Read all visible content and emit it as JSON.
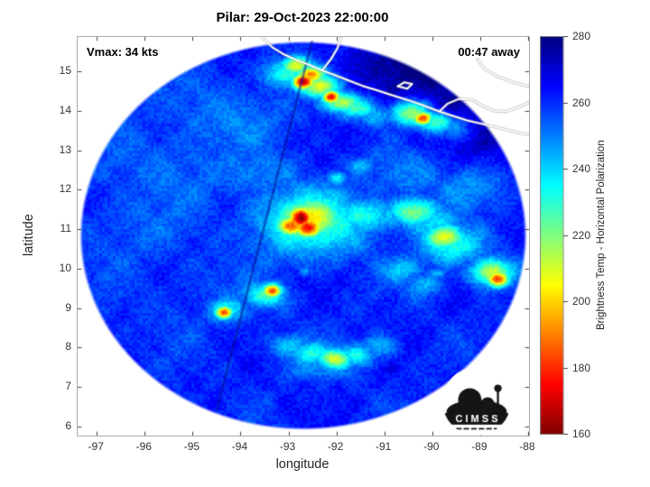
{
  "chart_data": {
    "type": "heatmap",
    "title": "Pilar: 29-Oct-2023 22:00:00",
    "xlabel": "longitude",
    "ylabel": "latitude",
    "annotations": {
      "vmax": "Vmax: 34 kts",
      "eta": "00:47 away"
    },
    "axes": {
      "xticks": [
        -97,
        -96,
        -95,
        -94,
        -93,
        -92,
        -91,
        -90,
        -89,
        -88
      ],
      "yticks": [
        6,
        7,
        8,
        9,
        10,
        11,
        12,
        13,
        14,
        15
      ],
      "xlim": [
        -97.4,
        -87.98
      ],
      "ylim": [
        5.77,
        15.87
      ],
      "grid": false
    },
    "colorbar": {
      "label": "Brightness Temp - Horizontal Polarization",
      "ticks": [
        160,
        180,
        200,
        220,
        240,
        260,
        280
      ],
      "min": 160,
      "max": 280,
      "colormap": "jet-reversed"
    },
    "base_temp_K": 261,
    "swath": {
      "center": [
        -92.7,
        10.85
      ],
      "radius_lon_deg": 4.67,
      "radius_lat_deg": 4.93
    },
    "seam": {
      "from": [
        -92.5,
        15.8
      ],
      "to": [
        -94.5,
        6.4
      ]
    },
    "feature_fields": [
      "lon",
      "lat",
      "temp_K",
      "sigma_lon_deg",
      "sigma_lat_deg"
    ],
    "features": [
      [
        -93.05,
        14.95,
        228,
        0.35,
        0.25
      ],
      [
        -92.85,
        15.15,
        205,
        0.22,
        0.16
      ],
      [
        -92.7,
        14.75,
        168,
        0.16,
        0.14
      ],
      [
        -92.55,
        14.92,
        192,
        0.2,
        0.15
      ],
      [
        -92.35,
        14.62,
        208,
        0.28,
        0.2
      ],
      [
        -92.12,
        14.36,
        172,
        0.13,
        0.12
      ],
      [
        -91.9,
        14.22,
        212,
        0.3,
        0.18
      ],
      [
        -91.55,
        14.08,
        228,
        0.35,
        0.2
      ],
      [
        -91.2,
        13.92,
        240,
        0.3,
        0.2
      ],
      [
        -90.45,
        13.96,
        212,
        0.3,
        0.22
      ],
      [
        -90.2,
        13.82,
        176,
        0.15,
        0.13
      ],
      [
        -89.92,
        13.72,
        218,
        0.28,
        0.2
      ],
      [
        -89.55,
        13.62,
        238,
        0.33,
        0.24
      ],
      [
        -89.2,
        15.0,
        274,
        1.5,
        0.95
      ],
      [
        -88.35,
        13.95,
        272,
        1.0,
        0.8
      ],
      [
        -90.6,
        15.3,
        270,
        0.9,
        0.5
      ],
      [
        -92.75,
        11.3,
        162,
        0.18,
        0.2
      ],
      [
        -92.6,
        11.05,
        176,
        0.22,
        0.18
      ],
      [
        -92.95,
        11.1,
        185,
        0.22,
        0.18
      ],
      [
        -92.6,
        11.25,
        203,
        0.5,
        0.38
      ],
      [
        -92.55,
        11.2,
        226,
        0.85,
        0.6
      ],
      [
        -92.0,
        11.45,
        238,
        0.5,
        0.3
      ],
      [
        -91.45,
        11.35,
        230,
        0.45,
        0.3
      ],
      [
        -90.95,
        11.3,
        240,
        0.4,
        0.28
      ],
      [
        -90.4,
        11.45,
        216,
        0.35,
        0.25
      ],
      [
        -90.0,
        11.15,
        238,
        0.4,
        0.3
      ],
      [
        -89.75,
        10.8,
        206,
        0.28,
        0.22
      ],
      [
        -89.6,
        10.6,
        230,
        0.45,
        0.35
      ],
      [
        -88.65,
        9.75,
        180,
        0.16,
        0.14
      ],
      [
        -88.78,
        9.92,
        208,
        0.3,
        0.24
      ],
      [
        -90.6,
        10.0,
        242,
        0.3,
        0.22
      ],
      [
        -90.15,
        9.6,
        244,
        0.28,
        0.2
      ],
      [
        -89.1,
        10.3,
        245,
        0.13,
        0.11
      ],
      [
        -88.85,
        10.0,
        247,
        0.11,
        0.1
      ],
      [
        -89.9,
        9.9,
        243,
        0.12,
        0.1
      ],
      [
        -93.35,
        9.45,
        186,
        0.14,
        0.12
      ],
      [
        -93.5,
        9.33,
        228,
        0.3,
        0.2
      ],
      [
        -94.35,
        8.9,
        182,
        0.12,
        0.11
      ],
      [
        -94.28,
        8.96,
        236,
        0.28,
        0.22
      ],
      [
        -93.0,
        8.05,
        240,
        0.3,
        0.2
      ],
      [
        -92.55,
        7.85,
        234,
        0.3,
        0.2
      ],
      [
        -92.05,
        7.72,
        212,
        0.25,
        0.18
      ],
      [
        -91.6,
        7.82,
        234,
        0.28,
        0.2
      ],
      [
        -91.15,
        8.02,
        242,
        0.3,
        0.2
      ],
      [
        -92.3,
        7.5,
        246,
        0.45,
        0.2
      ],
      [
        -92.0,
        12.3,
        232,
        0.13,
        0.11
      ],
      [
        -91.5,
        12.62,
        244,
        0.2,
        0.14
      ],
      [
        -92.65,
        9.95,
        247,
        0.12,
        0.1
      ],
      [
        -95.3,
        12.6,
        252,
        1.1,
        0.9
      ],
      [
        -94.3,
        13.8,
        251,
        1.0,
        0.75
      ],
      [
        -96.2,
        11.2,
        254,
        0.9,
        0.9
      ],
      [
        -93.6,
        12.35,
        250,
        0.7,
        0.5
      ],
      [
        -89.3,
        12.1,
        248,
        0.6,
        0.4
      ],
      [
        -90.5,
        12.35,
        250,
        0.7,
        0.45
      ],
      [
        -94.8,
        9.6,
        257,
        1.2,
        1.0
      ]
    ],
    "coastlines": [
      [
        [
          -93.55,
          15.87
        ],
        [
          -93.33,
          15.6
        ],
        [
          -93.08,
          15.42
        ],
        [
          -92.82,
          15.28
        ],
        [
          -92.58,
          15.17
        ],
        [
          -92.3,
          15.02
        ],
        [
          -92.03,
          14.9
        ],
        [
          -91.75,
          14.77
        ],
        [
          -91.45,
          14.63
        ],
        [
          -91.15,
          14.52
        ],
        [
          -90.85,
          14.4
        ],
        [
          -90.5,
          14.27
        ],
        [
          -90.15,
          14.12
        ],
        [
          -89.85,
          13.98
        ],
        [
          -89.55,
          13.86
        ],
        [
          -89.28,
          13.76
        ],
        [
          -89.0,
          13.68
        ],
        [
          -88.72,
          13.6
        ],
        [
          -88.45,
          13.52
        ],
        [
          -88.2,
          13.44
        ],
        [
          -88.0,
          13.4
        ]
      ],
      [
        [
          -92.3,
          15.02
        ],
        [
          -92.12,
          15.3
        ],
        [
          -91.98,
          15.58
        ],
        [
          -91.9,
          15.87
        ]
      ],
      [
        [
          -89.85,
          13.98
        ],
        [
          -89.68,
          14.18
        ],
        [
          -89.45,
          14.3
        ],
        [
          -89.18,
          14.28
        ],
        [
          -88.95,
          14.12
        ],
        [
          -88.72,
          14.0
        ],
        [
          -88.45,
          13.98
        ],
        [
          -88.18,
          14.1
        ],
        [
          -88.0,
          14.2
        ]
      ],
      [
        [
          -90.72,
          14.62
        ],
        [
          -90.58,
          14.72
        ],
        [
          -90.42,
          14.68
        ],
        [
          -90.52,
          14.56
        ],
        [
          -90.72,
          14.62
        ]
      ],
      [
        [
          -88.0,
          14.62
        ],
        [
          -88.3,
          14.72
        ],
        [
          -88.62,
          14.86
        ],
        [
          -88.9,
          15.05
        ],
        [
          -89.05,
          15.3
        ]
      ]
    ],
    "logo": {
      "text": "C I M S S"
    }
  }
}
